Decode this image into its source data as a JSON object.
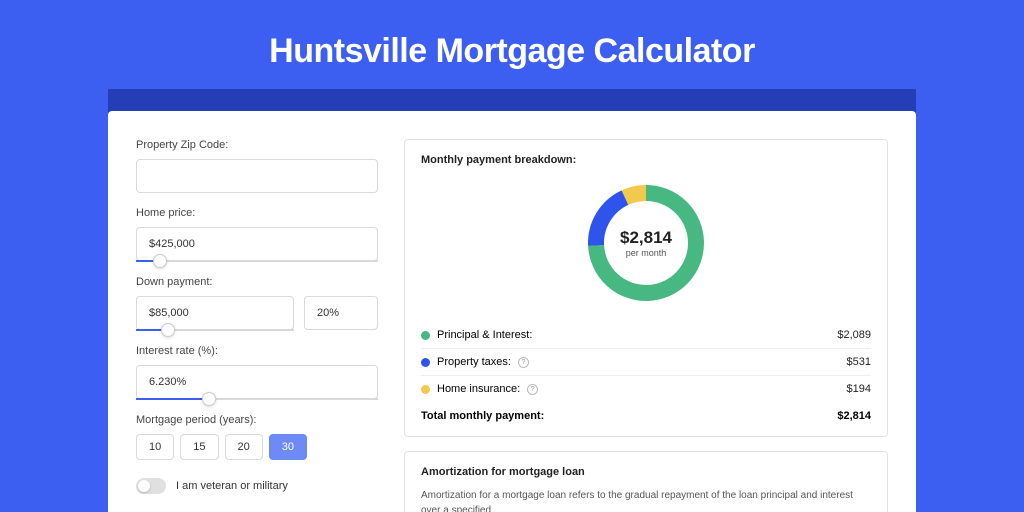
{
  "page": {
    "title": "Huntsville Mortgage Calculator",
    "background_color": "#3c5ff2",
    "band_color": "#253eb8",
    "card_color": "#ffffff"
  },
  "form": {
    "zip": {
      "label": "Property Zip Code:",
      "value": ""
    },
    "home_price": {
      "label": "Home price:",
      "value": "$425,000",
      "slider_pct": 10
    },
    "down_payment": {
      "label": "Down payment:",
      "value": "$85,000",
      "pct": "20%",
      "slider_pct": 20
    },
    "interest_rate": {
      "label": "Interest rate (%):",
      "value": "6.230%",
      "slider_pct": 30
    },
    "period": {
      "label": "Mortgage period (years):",
      "options": [
        "10",
        "15",
        "20",
        "30"
      ],
      "selected_index": 3
    },
    "veteran": {
      "label": "I am veteran or military",
      "checked": false
    }
  },
  "breakdown": {
    "title": "Monthly payment breakdown:",
    "center_amount": "$2,814",
    "center_sub": "per month",
    "donut": {
      "type": "donut",
      "background_color": "#ffffff",
      "stroke_width": 16,
      "slices": [
        {
          "label": "Principal & Interest:",
          "value": 2089,
          "display": "$2,089",
          "color": "#47b881",
          "pct": 74.2
        },
        {
          "label": "Property taxes:",
          "value": 531,
          "display": "$531",
          "color": "#2f54eb",
          "pct": 18.9,
          "info": true
        },
        {
          "label": "Home insurance:",
          "value": 194,
          "display": "$194",
          "color": "#f2c94c",
          "pct": 6.9,
          "info": true
        }
      ]
    },
    "total": {
      "label": "Total monthly payment:",
      "display": "$2,814"
    }
  },
  "amortization": {
    "title": "Amortization for mortgage loan",
    "text": "Amortization for a mortgage loan refers to the gradual repayment of the loan principal and interest over a specified"
  }
}
